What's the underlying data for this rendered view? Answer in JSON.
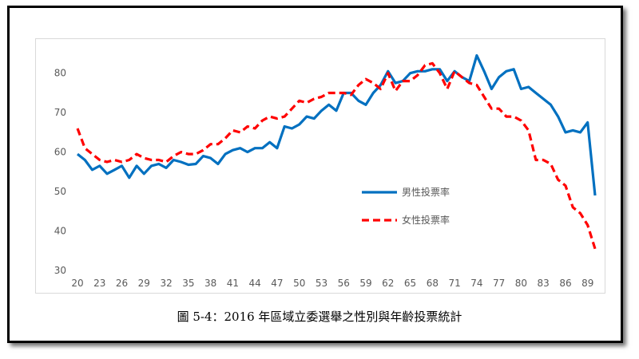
{
  "caption": "圖 5-4：2016 年區域立委選舉之性別與年齡投票統計",
  "colors": {
    "male": "#0070C0",
    "female": "#FF0000"
  },
  "chart_data": {
    "type": "line",
    "x": [
      20,
      21,
      22,
      23,
      24,
      25,
      26,
      27,
      28,
      29,
      30,
      31,
      32,
      33,
      34,
      35,
      36,
      37,
      38,
      39,
      40,
      41,
      42,
      43,
      44,
      45,
      46,
      47,
      48,
      49,
      50,
      51,
      52,
      53,
      54,
      55,
      56,
      57,
      58,
      59,
      60,
      61,
      62,
      63,
      64,
      65,
      66,
      67,
      68,
      69,
      70,
      71,
      72,
      73,
      74,
      75,
      76,
      77,
      78,
      79,
      80,
      81,
      82,
      83,
      84,
      85,
      86,
      87,
      88,
      89,
      90
    ],
    "xticks": [
      20,
      23,
      26,
      29,
      32,
      35,
      38,
      41,
      44,
      47,
      50,
      53,
      56,
      59,
      62,
      65,
      68,
      71,
      74,
      77,
      80,
      83,
      86,
      89
    ],
    "ylim": [
      30,
      85
    ],
    "yticks": [
      30,
      40,
      50,
      60,
      70,
      80
    ],
    "grid": false,
    "legend_position": "center-right",
    "series": [
      {
        "name": "男性投票率",
        "color": "#0070C0",
        "style": "solid",
        "values": [
          59.5,
          58,
          55.5,
          56.5,
          54.5,
          55.5,
          56.5,
          53.5,
          56.5,
          54.5,
          56.5,
          57,
          56,
          58,
          57.5,
          56.8,
          57,
          59,
          58.5,
          57,
          59.5,
          60.5,
          61,
          60,
          61,
          61,
          62.5,
          61,
          66.5,
          66,
          67,
          69,
          68.5,
          70.5,
          72,
          70.5,
          75,
          75,
          73,
          72,
          75,
          77,
          80.5,
          77.5,
          78,
          80,
          80.5,
          80.5,
          81,
          81,
          78,
          80.5,
          79,
          78,
          84.5,
          80.5,
          76,
          79,
          80.5,
          81,
          76,
          76.5,
          75,
          73.5,
          72,
          69,
          65,
          65.5,
          65,
          67.5,
          49
        ]
      },
      {
        "name": "女性投票率",
        "color": "#FF0000",
        "style": "dashed",
        "values": [
          66,
          61,
          59.5,
          58,
          57.5,
          58,
          57.5,
          58,
          59.5,
          58.5,
          58,
          58,
          57.5,
          59,
          60,
          59.5,
          59.5,
          60.5,
          62,
          62,
          63.5,
          65.5,
          65,
          66.5,
          66,
          68,
          69,
          68.5,
          69,
          71,
          73,
          72.5,
          73.5,
          74,
          75,
          75,
          75,
          74.5,
          77,
          78.5,
          77.5,
          76,
          80,
          75.5,
          78,
          78,
          79.5,
          82,
          82.5,
          80,
          76,
          80.5,
          79,
          77.5,
          77,
          74,
          71,
          71,
          69,
          69,
          68,
          65.5,
          58,
          58,
          57,
          53,
          51.5,
          46,
          44.5,
          41.5,
          35.5
        ]
      }
    ]
  }
}
